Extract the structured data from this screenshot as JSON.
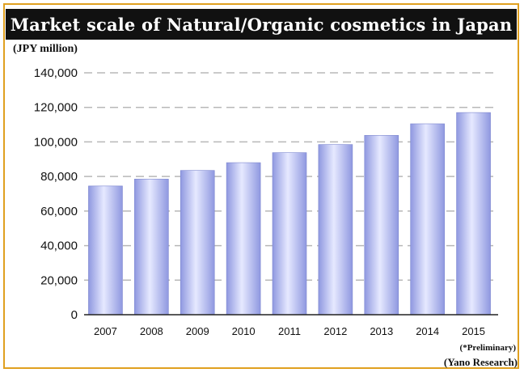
{
  "chart_data": {
    "type": "bar",
    "title": "Market scale of Natural/Organic cosmetics in Japan",
    "ylabel": "(JPY million)",
    "xlabel": "",
    "categories": [
      "2007",
      "2008",
      "2009",
      "2010",
      "2011",
      "2012",
      "2013",
      "2014",
      "2015"
    ],
    "values": [
      74500,
      78500,
      83500,
      88000,
      93800,
      98500,
      103800,
      110500,
      117000
    ],
    "ylim": [
      0,
      140000
    ],
    "yticks": [
      "0",
      "20,000",
      "40,000",
      "60,000",
      "80,000",
      "100,000",
      "120,000",
      "140,000"
    ],
    "ytick_values": [
      0,
      20000,
      40000,
      60000,
      80000,
      100000,
      120000,
      140000
    ],
    "grid": true,
    "bar_color": "#8f98e0",
    "bar_highlight": "#e6e9ff",
    "note": "(*Preliminary)",
    "source": "(Yano Research)"
  }
}
